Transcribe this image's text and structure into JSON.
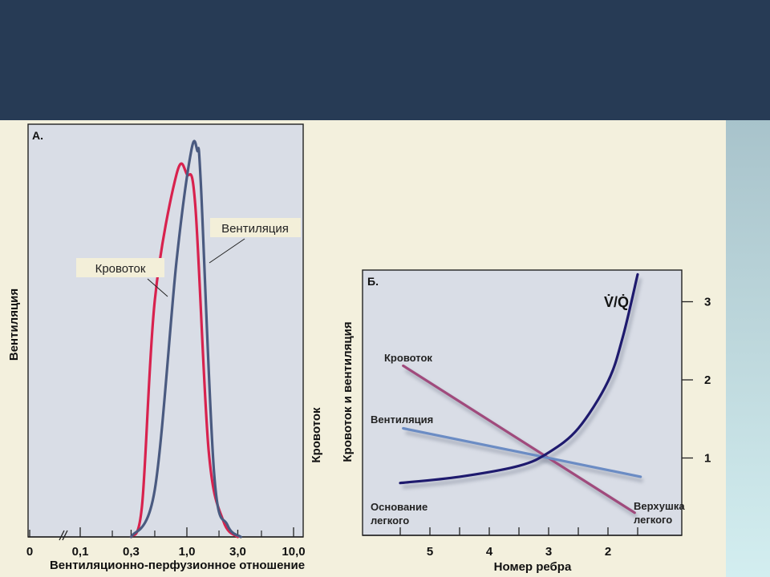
{
  "slide": {
    "header_color": "#273b55",
    "background_color": "#f3f0dd",
    "side_band_color": "#bcd6db"
  },
  "chart_data": [
    {
      "type": "line",
      "panel_label": "А.",
      "xlabel": "Вентиляционно-перфузионное отношение",
      "ylabel": "Вентиляция",
      "x_scale": "log",
      "x_ticks": [
        "0",
        "0,1",
        "0,3",
        "1,0",
        "3,0",
        "10,0"
      ],
      "x_tick_values": [
        0,
        0.1,
        0.3,
        1.0,
        3.0,
        10.0
      ],
      "axis_break": true,
      "grid": false,
      "series": [
        {
          "name": "Кровоток",
          "color": "#d8224e",
          "x": [
            0.3,
            0.38,
            0.5,
            0.8,
            1.0,
            1.2,
            1.6,
            2.2,
            3.0
          ],
          "y": [
            0.0,
            0.08,
            0.6,
            0.92,
            0.92,
            0.84,
            0.22,
            0.04,
            0.0
          ]
        },
        {
          "name": "Вентиляция",
          "color": "#4a5a80",
          "x": [
            0.3,
            0.5,
            0.8,
            1.1,
            1.25,
            1.35,
            1.8,
            2.4,
            3.2
          ],
          "y": [
            0.0,
            0.12,
            0.7,
            0.98,
            0.98,
            0.9,
            0.16,
            0.03,
            0.0
          ]
        }
      ],
      "annotations": [
        {
          "text": "Кровоток",
          "series": "Кровоток"
        },
        {
          "text": "Вентиляция",
          "series": "Вентиляция"
        }
      ]
    },
    {
      "type": "line",
      "panel_label": "Б.",
      "xlabel": "Номер ребра",
      "ylabel_outer": "Кровоток",
      "ylabel_inner": "Кровоток и вентиляция",
      "x_ticks": [
        "5",
        "4",
        "3",
        "2"
      ],
      "x_tick_values": [
        5,
        4,
        3,
        2
      ],
      "x_reversed": true,
      "y2_ticks": [
        "1",
        "2",
        "3"
      ],
      "y2_tick_values": [
        1,
        2,
        3
      ],
      "grid": false,
      "series": [
        {
          "name": "Кровоток",
          "color": "#a04a7c",
          "x": [
            5.45,
            1.55
          ],
          "y": [
            2.18,
            0.3
          ]
        },
        {
          "name": "Вентиляция",
          "color": "#6b8cc4",
          "x": [
            5.45,
            1.45
          ],
          "y": [
            1.38,
            0.76
          ]
        },
        {
          "name": "V̇/Q̇",
          "color": "#1e1a6e",
          "x": [
            5.5,
            4.5,
            3.5,
            3.0,
            2.5,
            2.0,
            1.75,
            1.5
          ],
          "y": [
            0.68,
            0.76,
            0.9,
            1.07,
            1.38,
            1.98,
            2.55,
            3.35
          ]
        }
      ],
      "annotations": [
        {
          "text": "Кровоток",
          "series": "Кровоток"
        },
        {
          "text": "Вентиляция",
          "series": "Вентиляция"
        },
        {
          "text": "V̇/Q̇",
          "series": "V̇/Q̇"
        },
        {
          "text": "Основание",
          "line2": "легкого"
        },
        {
          "text": "Верхушка",
          "line2": "легкого"
        }
      ]
    }
  ]
}
